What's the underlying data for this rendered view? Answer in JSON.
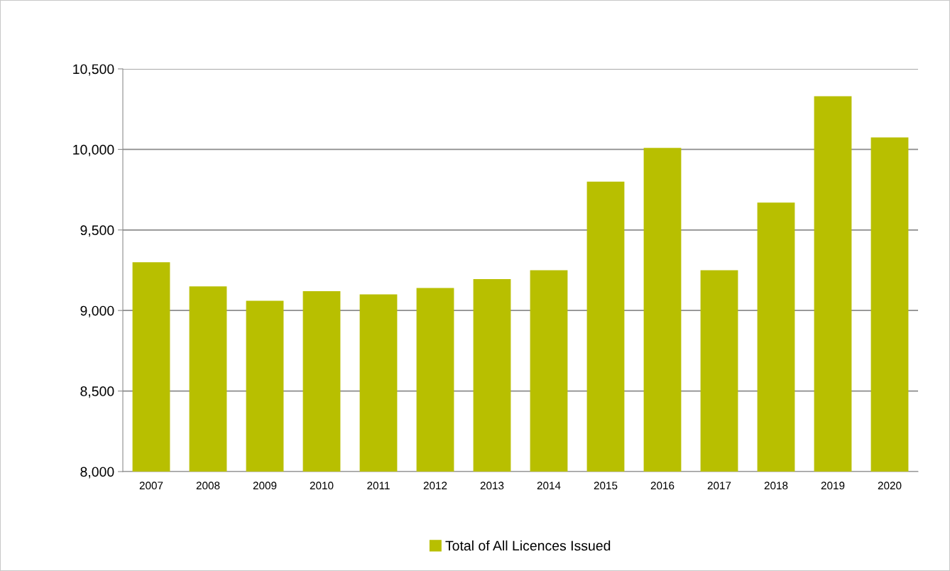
{
  "chart_data": {
    "type": "bar",
    "categories": [
      "2007",
      "2008",
      "2009",
      "2010",
      "2011",
      "2012",
      "2013",
      "2014",
      "2015",
      "2016",
      "2017",
      "2018",
      "2019",
      "2020"
    ],
    "series": [
      {
        "name": "Total of All Licences Issued",
        "color": "#b8bf00",
        "values": [
          9300,
          9150,
          9060,
          9120,
          9100,
          9140,
          9195,
          9250,
          9800,
          10010,
          9250,
          9670,
          10330,
          10075
        ]
      }
    ],
    "ylim": [
      8000,
      10500
    ],
    "yticks": [
      {
        "value": 8000,
        "label": "8,000"
      },
      {
        "value": 8500,
        "label": "8,500"
      },
      {
        "value": 9000,
        "label": "9,000"
      },
      {
        "value": 9500,
        "label": "9,500"
      },
      {
        "value": 10000,
        "label": "10,000"
      },
      {
        "value": 10500,
        "label": "10,500"
      }
    ],
    "grid": "y",
    "legend": "bottom"
  }
}
